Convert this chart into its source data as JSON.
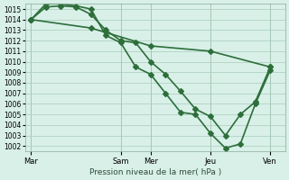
{
  "title": "Pression niveau de la mer( hPa )",
  "xlabel": "Pression niveau de la mer( hPa )",
  "background_color": "#d8f0e8",
  "grid_color": "#aaccbb",
  "line_color": "#2d6e3a",
  "ylim": [
    1001.5,
    1015.5
  ],
  "yticks": [
    1002,
    1003,
    1004,
    1005,
    1006,
    1007,
    1008,
    1009,
    1010,
    1011,
    1012,
    1013,
    1014,
    1015
  ],
  "xtick_labels": [
    "Mar",
    "Sam",
    "Mer",
    "Jeu",
    "Ven"
  ],
  "xtick_positions": [
    0,
    3,
    4,
    6,
    8
  ],
  "line1_x": [
    0,
    0.5,
    1,
    1.5,
    2,
    2.5,
    3,
    3.5,
    4,
    4.5,
    5,
    5.5,
    6,
    6.5,
    7,
    7.5,
    8
  ],
  "line1_y": [
    1014.0,
    1015.2,
    1015.3,
    1015.2,
    1014.5,
    1013.0,
    1012.0,
    1011.8,
    1010.0,
    1008.8,
    1007.2,
    1005.5,
    1004.8,
    1003.0,
    1005.0,
    1006.2,
    1009.5
  ],
  "line2_x": [
    0,
    0.5,
    1,
    1.5,
    2,
    2.5,
    3,
    3.5,
    4,
    4.5,
    5,
    5.5,
    6,
    6.5,
    7,
    7.5,
    8
  ],
  "line2_y": [
    1014.0,
    1015.5,
    1015.5,
    1015.3,
    1015.0,
    1012.5,
    1011.8,
    1009.5,
    1008.8,
    1007.0,
    1005.2,
    1005.0,
    1003.2,
    1001.8,
    1002.2,
    1006.0,
    1009.2
  ],
  "line3_x": [
    0,
    2,
    4,
    6,
    8
  ],
  "line3_y": [
    1014.0,
    1013.2,
    1011.5,
    1011.0,
    1009.5
  ],
  "marker_size": 3.0,
  "line_width": 1.2
}
